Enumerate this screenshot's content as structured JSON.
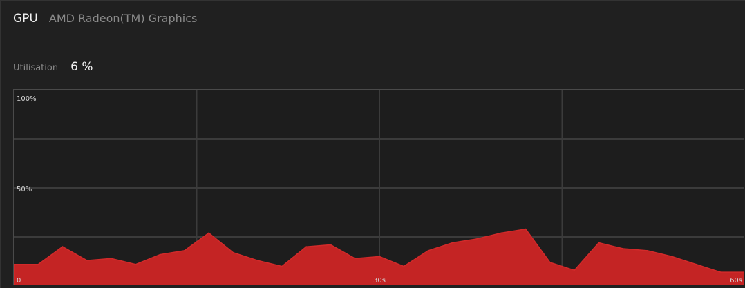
{
  "header": {
    "title": "GPU",
    "subtitle": "AMD Radeon(TM) Graphics"
  },
  "metric": {
    "label": "Utilisation",
    "value": "6 %"
  },
  "colors": {
    "background": "#202020",
    "chart_background": "#1d1d1d",
    "grid": "#3b3b3b",
    "area_fill": "#c42424",
    "area_stroke": "#d22a2a"
  },
  "chart_data": {
    "type": "area",
    "x": [
      0,
      2,
      4,
      6,
      8,
      10,
      12,
      14,
      16,
      18,
      20,
      22,
      24,
      26,
      28,
      30,
      32,
      34,
      36,
      38,
      40,
      42,
      44,
      46,
      48,
      50,
      52,
      54,
      56,
      58,
      60
    ],
    "series": [
      {
        "values": [
          11,
          11,
          20,
          13,
          14,
          11,
          16,
          18,
          27,
          17,
          13,
          10,
          20,
          21,
          14,
          15,
          10,
          18,
          22,
          24,
          27,
          29,
          12,
          8,
          22,
          19,
          18,
          15,
          11,
          7,
          7
        ]
      }
    ],
    "x_tick_labels": [
      "0",
      "30s",
      "60s"
    ],
    "y_tick_labels": [
      "100%",
      "50%"
    ],
    "xlim": [
      0,
      60
    ],
    "ylim": [
      0,
      100
    ],
    "grid": true,
    "legend": "none"
  }
}
